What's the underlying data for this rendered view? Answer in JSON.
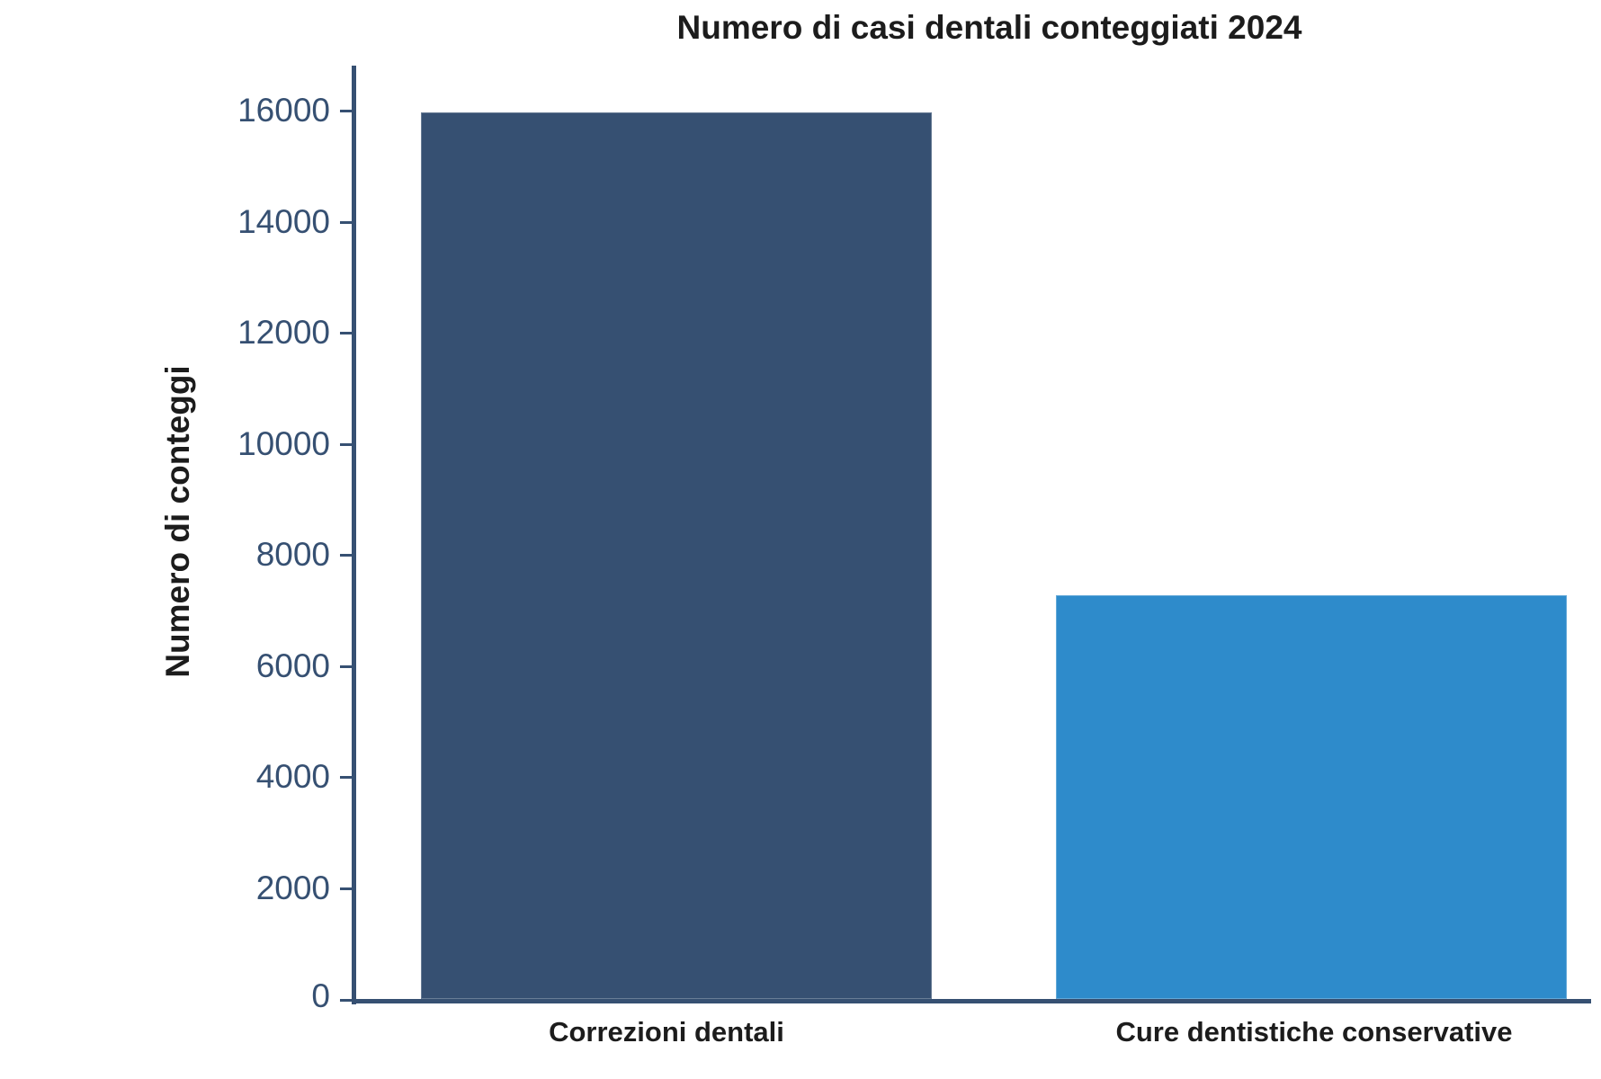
{
  "chart_data": {
    "type": "bar",
    "title": "Numero di casi dentali conteggiati 2024",
    "xlabel": "",
    "ylabel": "Numero di conteggi",
    "categories": [
      "Correzioni dentali",
      "Cure dentistiche conservative"
    ],
    "values": [
      16000,
      7300
    ],
    "colors": [
      "#365072",
      "#2E8BCB"
    ],
    "ylim": [
      0,
      16800
    ],
    "yticks": [
      0,
      2000,
      4000,
      6000,
      8000,
      10000,
      12000,
      14000,
      16000
    ],
    "grid": false,
    "legend": null
  },
  "labels": {
    "title": "Numero di casi dentali conteggiati 2024",
    "ylabel": "Numero di conteggi",
    "yticks": [
      "0",
      "2000",
      "4000",
      "6000",
      "8000",
      "10000",
      "12000",
      "14000",
      "16000"
    ],
    "categories": [
      "Correzioni dentali",
      "Cure dentistiche conservative"
    ]
  },
  "colors": {
    "axis": "#365072",
    "bar1": "#365072",
    "bar2": "#2E8BCB",
    "text": "#1c1c1c"
  }
}
